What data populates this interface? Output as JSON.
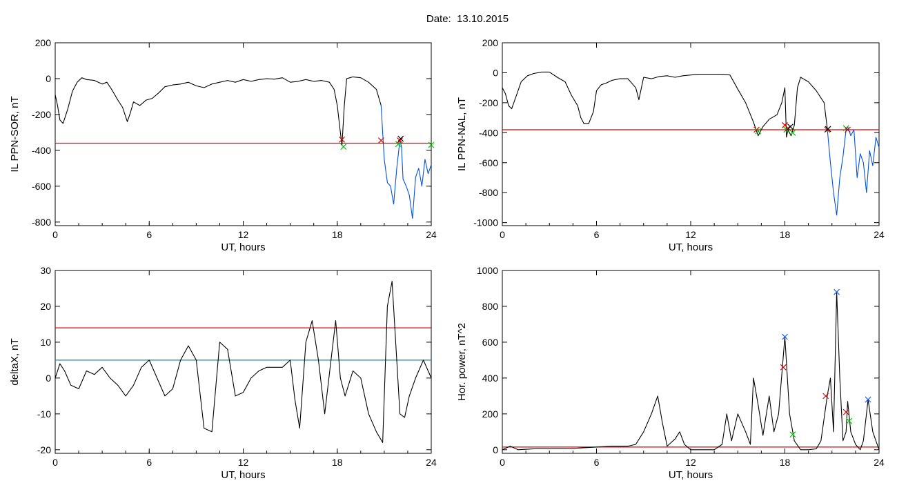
{
  "header": {
    "date_prefix": "Date:",
    "date_value": "13.10.2015"
  },
  "colors": {
    "trace": "#000000",
    "threshold": "#e00000",
    "threshold2": "#1a8aa6",
    "highlight": "#0050e0",
    "marker_red": "#e00000",
    "marker_green": "#00c000",
    "marker_blue": "#1060ff",
    "marker_black": "#000000"
  },
  "chart_data": [
    {
      "type": "line",
      "ylabel": "IL PPN-SOR, nT",
      "xlabel": "UT, hours",
      "xlim": [
        0,
        24
      ],
      "ylim": [
        -820,
        200
      ],
      "xticks": [
        0,
        6,
        12,
        18,
        24
      ],
      "yticks": [
        -800,
        -600,
        -400,
        -200,
        0,
        200
      ],
      "threshold": -360,
      "series": [
        {
          "x": [
            0,
            0.15,
            0.3,
            0.5,
            0.8,
            1.1,
            1.4,
            1.7,
            2.0,
            2.5,
            3.0,
            3.3,
            3.6,
            4.0,
            4.3,
            4.6,
            4.8,
            5.0,
            5.4,
            5.8,
            6.2,
            6.6,
            7.0,
            7.5,
            8.0,
            8.5,
            9.0,
            9.5,
            10.0,
            10.5,
            11.0,
            11.5,
            12.0,
            12.5,
            13.0,
            13.5,
            14.0,
            14.5,
            15.0,
            15.5,
            16.0,
            16.5,
            17.0,
            17.5,
            17.8,
            18.0,
            18.2,
            18.3,
            18.45,
            18.6,
            18.8,
            19.0,
            19.5,
            20.0,
            20.5,
            20.8
          ],
          "y": [
            -90,
            -150,
            -230,
            -250,
            -170,
            -70,
            -20,
            5,
            -5,
            -10,
            -30,
            -20,
            -60,
            -120,
            -160,
            -240,
            -190,
            -130,
            -150,
            -120,
            -110,
            -80,
            -45,
            -35,
            -30,
            -20,
            -40,
            -50,
            -30,
            -20,
            -10,
            -20,
            -5,
            -15,
            -5,
            0,
            -3,
            5,
            -20,
            -15,
            -5,
            -15,
            -10,
            -20,
            -60,
            -150,
            -300,
            -370,
            -150,
            0,
            5,
            10,
            5,
            -20,
            -60,
            -150
          ]
        },
        {
          "x": [
            20.8,
            21.0,
            21.2,
            21.4,
            21.6,
            21.8,
            22.0,
            22.1,
            22.2,
            22.4,
            22.6,
            22.8,
            23.0,
            23.2,
            23.4,
            23.6,
            23.8,
            24.0
          ],
          "y": [
            -150,
            -450,
            -580,
            -600,
            -700,
            -500,
            -340,
            -380,
            -560,
            -600,
            -650,
            -780,
            -550,
            -500,
            -600,
            -450,
            -530,
            -480
          ]
        }
      ],
      "markers": [
        {
          "x": 18.3,
          "y": -340,
          "color": "red"
        },
        {
          "x": 18.4,
          "y": -380,
          "color": "green"
        },
        {
          "x": 20.8,
          "y": -345,
          "color": "red"
        },
        {
          "x": 21.9,
          "y": -365,
          "color": "green"
        },
        {
          "x": 22.0,
          "y": -345,
          "color": "red"
        },
        {
          "x": 22.05,
          "y": -335,
          "color": "black"
        },
        {
          "x": 24.0,
          "y": -370,
          "color": "green"
        }
      ]
    },
    {
      "type": "line",
      "ylabel": "IL PPN-NAL, nT",
      "xlabel": "UT, hours",
      "xlim": [
        0,
        24
      ],
      "ylim": [
        -1020,
        200
      ],
      "xticks": [
        0,
        6,
        12,
        18,
        24
      ],
      "yticks": [
        -1000,
        -800,
        -600,
        -400,
        -200,
        0,
        200
      ],
      "threshold": -380,
      "series": [
        {
          "x": [
            0,
            0.2,
            0.4,
            0.6,
            0.9,
            1.2,
            1.6,
            2.0,
            2.5,
            3.0,
            3.5,
            4.0,
            4.4,
            4.8,
            5.0,
            5.2,
            5.5,
            5.8,
            6.0,
            6.3,
            6.6,
            7.0,
            7.5,
            8.0,
            8.5,
            8.7,
            9.0,
            9.5,
            10.0,
            10.5,
            11.0,
            11.5,
            12.0,
            12.5,
            13.0,
            13.5,
            14.0,
            14.5,
            15.0,
            15.5,
            16.0,
            16.3,
            16.6,
            17.0,
            17.5,
            17.8,
            18.0,
            18.1,
            18.2,
            18.4,
            18.6,
            18.8,
            19.0,
            19.5,
            20.0,
            20.5,
            20.7
          ],
          "y": [
            -100,
            -140,
            -220,
            -240,
            -150,
            -60,
            -20,
            -5,
            5,
            5,
            -30,
            -60,
            -150,
            -220,
            -300,
            -340,
            -340,
            -260,
            -120,
            -80,
            -70,
            -50,
            -40,
            -40,
            -100,
            -180,
            -30,
            -40,
            -25,
            -20,
            -30,
            -20,
            -15,
            -10,
            -10,
            -10,
            -10,
            -15,
            -110,
            -200,
            -330,
            -420,
            -360,
            -310,
            -280,
            -200,
            -100,
            -430,
            -380,
            -420,
            -350,
            -100,
            -30,
            -60,
            -120,
            -200,
            -370
          ]
        },
        {
          "x": [
            20.7,
            20.9,
            21.1,
            21.3,
            21.5,
            21.7,
            21.9,
            22.0,
            22.2,
            22.4,
            22.6,
            22.8,
            23.0,
            23.2,
            23.4,
            23.6,
            23.8,
            24.0
          ],
          "y": [
            -370,
            -600,
            -800,
            -950,
            -700,
            -560,
            -380,
            -360,
            -420,
            -380,
            -700,
            -540,
            -600,
            -800,
            -520,
            -620,
            -430,
            -500
          ]
        }
      ],
      "markers": [
        {
          "x": 16.2,
          "y": -380,
          "color": "red"
        },
        {
          "x": 16.3,
          "y": -390,
          "color": "green"
        },
        {
          "x": 18.0,
          "y": -350,
          "color": "red"
        },
        {
          "x": 18.1,
          "y": -380,
          "color": "green"
        },
        {
          "x": 18.2,
          "y": -370,
          "color": "red"
        },
        {
          "x": 18.35,
          "y": -360,
          "color": "black"
        },
        {
          "x": 18.5,
          "y": -400,
          "color": "green"
        },
        {
          "x": 20.7,
          "y": -380,
          "color": "red"
        },
        {
          "x": 20.75,
          "y": -375,
          "color": "black"
        },
        {
          "x": 21.9,
          "y": -370,
          "color": "green"
        },
        {
          "x": 22.0,
          "y": -380,
          "color": "red"
        }
      ]
    },
    {
      "type": "line",
      "ylabel": "deltaX, nT",
      "xlabel": "UT, hours",
      "xlim": [
        0,
        24
      ],
      "ylim": [
        -21,
        30
      ],
      "xticks": [
        0,
        6,
        12,
        18,
        24
      ],
      "yticks": [
        -20,
        -10,
        0,
        10,
        20,
        30
      ],
      "threshold": 14,
      "threshold2": 5,
      "series": [
        {
          "x": [
            0,
            0.3,
            0.6,
            1.0,
            1.5,
            2.0,
            2.5,
            3.0,
            3.5,
            4.0,
            4.5,
            5.0,
            5.5,
            6.0,
            6.5,
            7.0,
            7.5,
            8.0,
            8.5,
            9.0,
            9.5,
            10.0,
            10.5,
            11.0,
            11.5,
            12.0,
            12.5,
            13.0,
            13.5,
            14.0,
            14.5,
            15.0,
            15.3,
            15.6,
            16.0,
            16.4,
            16.8,
            17.2,
            17.6,
            17.9,
            18.2,
            18.5,
            19.0,
            19.5,
            20.0,
            20.5,
            20.9,
            21.2,
            21.5,
            21.8,
            22.0,
            22.3,
            22.6,
            23.0,
            23.5,
            24.0
          ],
          "y": [
            0,
            4,
            2,
            -2,
            -3,
            2,
            1,
            3,
            0,
            -2,
            -5,
            -2,
            3,
            5,
            0,
            -5,
            -3,
            5,
            9,
            5,
            -14,
            -15,
            10,
            8,
            -5,
            -4,
            0,
            2,
            3,
            3,
            3,
            5,
            -6,
            -14,
            10,
            16,
            5,
            -10,
            5,
            16,
            0,
            -5,
            2,
            0,
            -10,
            -15,
            -18,
            20,
            27,
            5,
            -10,
            -11,
            -5,
            0,
            5,
            0
          ]
        }
      ]
    },
    {
      "type": "line",
      "ylabel": "Hor. power, nT^2",
      "xlabel": "UT, hours",
      "xlim": [
        0,
        24
      ],
      "ylim": [
        -20,
        1000
      ],
      "xticks": [
        0,
        6,
        12,
        18,
        24
      ],
      "yticks": [
        0,
        200,
        400,
        600,
        800,
        1000
      ],
      "threshold": 15,
      "series": [
        {
          "x": [
            0,
            0.5,
            1.0,
            2.0,
            3.0,
            4.0,
            5.0,
            6.0,
            7.0,
            8.0,
            8.5,
            9.0,
            9.5,
            9.9,
            10.2,
            10.5,
            11.0,
            11.3,
            11.6,
            12.0,
            13.0,
            13.5,
            14.0,
            14.3,
            14.6,
            15.0,
            15.5,
            15.8,
            16.0,
            16.3,
            16.6,
            17.0,
            17.3,
            17.6,
            18.0,
            18.3,
            18.6,
            19.0,
            19.5,
            20.0,
            20.3,
            20.7,
            20.9,
            21.1,
            21.3,
            21.5,
            21.7,
            21.9,
            22.0,
            22.2,
            22.5,
            22.8,
            23.0,
            23.3,
            23.6,
            24.0
          ],
          "y": [
            0,
            20,
            0,
            5,
            5,
            5,
            10,
            15,
            20,
            20,
            30,
            100,
            200,
            300,
            150,
            20,
            60,
            100,
            30,
            0,
            0,
            0,
            30,
            200,
            50,
            200,
            100,
            30,
            400,
            250,
            80,
            300,
            100,
            200,
            630,
            200,
            50,
            0,
            0,
            5,
            50,
            300,
            400,
            100,
            880,
            400,
            50,
            100,
            270,
            100,
            30,
            0,
            50,
            280,
            100,
            0
          ]
        }
      ],
      "markers": [
        {
          "x": 18.0,
          "y": 630,
          "color": "blue"
        },
        {
          "x": 17.9,
          "y": 460,
          "color": "red"
        },
        {
          "x": 18.5,
          "y": 85,
          "color": "green"
        },
        {
          "x": 20.6,
          "y": 300,
          "color": "red"
        },
        {
          "x": 21.3,
          "y": 880,
          "color": "blue"
        },
        {
          "x": 21.9,
          "y": 210,
          "color": "red"
        },
        {
          "x": 22.1,
          "y": 160,
          "color": "green"
        },
        {
          "x": 23.3,
          "y": 280,
          "color": "blue"
        }
      ]
    }
  ]
}
